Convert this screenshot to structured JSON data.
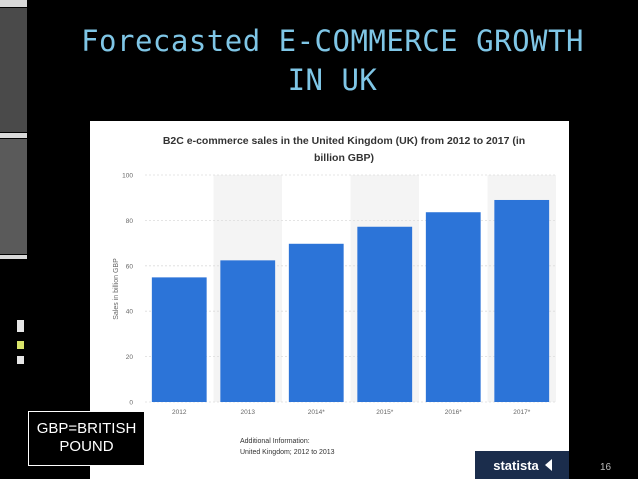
{
  "slide": {
    "title_line1": "Forecasted E-COMMERCE GROWTH",
    "title_line2": "IN UK",
    "note_line1": "GBP=BRITISH",
    "note_line2": "POUND",
    "page_number": "16",
    "accent_color": "#7fc6e6"
  },
  "chart_data": {
    "type": "bar",
    "title": "B2C e-commerce sales in the United Kingdom (UK) from 2012 to 2017 (in billion GBP)",
    "title_line1": "B2C e-commerce sales in the United Kingdom (UK) from 2012 to 2017 (in",
    "title_line2": "billion GBP)",
    "categories": [
      "2012",
      "2013",
      "2014*",
      "2015*",
      "2016*",
      "2017*"
    ],
    "values": [
      54.9,
      62.4,
      69.7,
      77.2,
      83.6,
      89.0
    ],
    "ylabel": "Sales in billion GBP",
    "xlabel": "",
    "ylim": [
      0,
      100
    ],
    "yticks": [
      "0",
      "20",
      "40",
      "60",
      "80",
      "100"
    ],
    "bar_color": "#2c74d8",
    "grid": true,
    "additional_info_label": "Additional Information:",
    "additional_info_text": "United Kingdom; 2012 to 2013",
    "brand": "statista"
  }
}
